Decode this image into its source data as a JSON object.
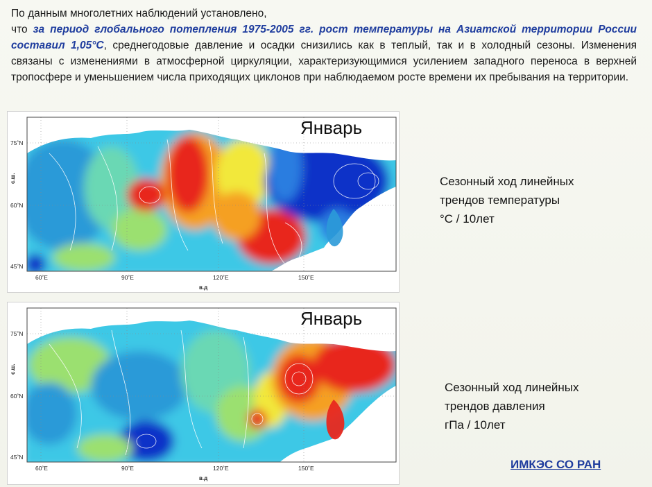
{
  "intro": {
    "line1": "По данным многолетних наблюдений установлено,",
    "line2_prefix": "что ",
    "highlight": "за период глобального потепления 1975-2005 гг. рост температуры на Азиатской территории России составил 1,05°С",
    "rest": ", среднегодовые давление и осадки снизились как в теплый, так и в холодный сезоны. Изменения связаны с изменениями в атмосферной циркуляции, характеризующимися усилением западного переноса в верхней тропосфере и уменьшением числа приходящих циклонов при наблюдаемом росте времени их пребывания на территории."
  },
  "maps": [
    {
      "title": "Январь",
      "caption_lines": [
        "Сезонный ход линейных",
        "трендов температуры",
        "°С / 10лет"
      ],
      "lat_ticks": [
        "75˚N",
        "60˚N",
        "45˚N"
      ],
      "lon_ticks": [
        "60˚E",
        "90˚E",
        "120˚E",
        "150˚E"
      ],
      "ylabel": "с.ш.",
      "xlabel": "в.д"
    },
    {
      "title": "Январь",
      "caption_lines": [
        "Сезонный ход линейных",
        "трендов давления",
        "гПа / 10лет"
      ],
      "lat_ticks": [
        "75˚N",
        "60˚N",
        "45˚N"
      ],
      "lon_ticks": [
        "60˚E",
        "90˚E",
        "120˚E",
        "150˚E"
      ],
      "ylabel": "с.ш.",
      "xlabel": "в.д"
    }
  ],
  "footer": {
    "link_label": "ИМКЭС СО РАН"
  },
  "colors": {
    "highlight_text": "#1f3d9e",
    "deep_blue": "#1030c8",
    "blue": "#2b7de0",
    "cyan": "#3cc8e6",
    "green": "#9be070",
    "yellow": "#f2e83a",
    "orange": "#f5a020",
    "red": "#e8281e",
    "dark_red": "#b4141a"
  }
}
